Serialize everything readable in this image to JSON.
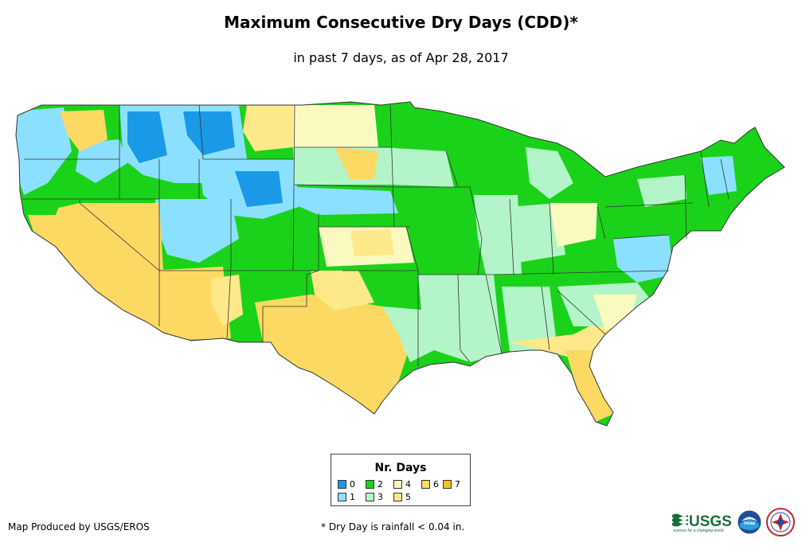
{
  "header": {
    "title": "Maximum Consecutive Dry Days (CDD)*",
    "subtitle": "in past 7 days, as of Apr 28, 2017"
  },
  "legend": {
    "title": "Nr. Days",
    "items": [
      {
        "label": "0",
        "color": "#1a99e6"
      },
      {
        "label": "1",
        "color": "#8ce0ff"
      },
      {
        "label": "2",
        "color": "#1ad21a"
      },
      {
        "label": "3",
        "color": "#b3f5c8"
      },
      {
        "label": "4",
        "color": "#fafac0"
      },
      {
        "label": "5",
        "color": "#fde98a"
      },
      {
        "label": "6",
        "color": "#fbd963"
      },
      {
        "label": "7",
        "color": "#fbc21c"
      }
    ]
  },
  "footer": {
    "credit": "Map Produced by USGS/EROS",
    "footnote": "* Dry Day is rainfall < 0.04 in."
  },
  "logos": {
    "usgs_text": "USGS",
    "usgs_tagline": "science for a changing world",
    "noaa_text": "noaa",
    "nws_icon": "nws-seal-icon"
  }
}
